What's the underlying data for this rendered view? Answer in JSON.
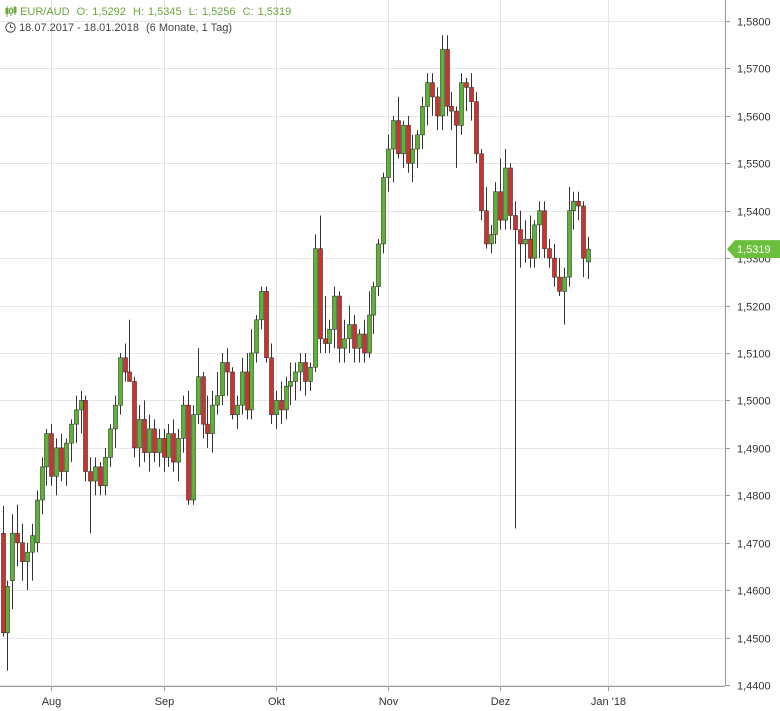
{
  "header": {
    "symbol": "EUR/AUD",
    "open_label": "O:",
    "open": "1,5292",
    "high_label": "H:",
    "high": "1,5345",
    "low_label": "L:",
    "low": "1,5256",
    "close_label": "C:",
    "close": "1,5319",
    "range": "18.07.2017 - 18.01.2018",
    "period": "(6 Monate, 1 Tag)",
    "icons": [
      "candles-icon",
      "clock-icon"
    ]
  },
  "colors": {
    "up": "#5cb531",
    "down": "#d0312d",
    "grid": "#e6e6e6",
    "badge": "#6cbf3d",
    "text": "#333333"
  },
  "chart_data": {
    "type": "candlestick",
    "ylim": [
      1.44,
      1.58
    ],
    "yticks": [
      1.58,
      1.57,
      1.56,
      1.55,
      1.54,
      1.53,
      1.52,
      1.51,
      1.5,
      1.49,
      1.48,
      1.47,
      1.46,
      1.45,
      1.44
    ],
    "ytick_labels": [
      "1,5800",
      "1,5700",
      "1,5600",
      "1,5500",
      "1,5400",
      "1,5300",
      "1,5200",
      "1,5100",
      "1,5000",
      "1,4900",
      "1,4800",
      "1,4700",
      "1,4600",
      "1,4500",
      "1,4400"
    ],
    "xticks": [
      {
        "label": "Aug",
        "index": 10
      },
      {
        "label": "Sep",
        "index": 33
      },
      {
        "label": "Okt",
        "index": 56
      },
      {
        "label": "Nov",
        "index": 79
      },
      {
        "label": "Dez",
        "index": 102
      },
      {
        "label": "Jan '18",
        "index": 124
      }
    ],
    "last_price": 1.5319,
    "last_price_label": "1,5319",
    "candles": [
      [
        1.472,
        1.4778,
        1.4502,
        1.451
      ],
      [
        1.451,
        1.462,
        1.443,
        1.4608
      ],
      [
        1.462,
        1.476,
        1.456,
        1.472
      ],
      [
        1.472,
        1.478,
        1.465,
        1.47
      ],
      [
        1.47,
        1.474,
        1.462,
        1.466
      ],
      [
        1.466,
        1.47,
        1.46,
        1.468
      ],
      [
        1.468,
        1.474,
        1.462,
        1.4715
      ],
      [
        1.47,
        1.481,
        1.468,
        1.479
      ],
      [
        1.479,
        1.488,
        1.476,
        1.486
      ],
      [
        1.486,
        1.494,
        1.482,
        1.493
      ],
      [
        1.493,
        1.495,
        1.482,
        1.484
      ],
      [
        1.484,
        1.492,
        1.48,
        1.49
      ],
      [
        1.49,
        1.493,
        1.483,
        1.485
      ],
      [
        1.485,
        1.492,
        1.482,
        1.491
      ],
      [
        1.491,
        1.496,
        1.487,
        1.495
      ],
      [
        1.495,
        1.501,
        1.491,
        1.498
      ],
      [
        1.498,
        1.502,
        1.493,
        1.5
      ],
      [
        1.5,
        1.501,
        1.483,
        1.485
      ],
      [
        1.485,
        1.488,
        1.472,
        1.483
      ],
      [
        1.483,
        1.488,
        1.48,
        1.486
      ],
      [
        1.486,
        1.487,
        1.48,
        1.482
      ],
      [
        1.482,
        1.49,
        1.48,
        1.488
      ],
      [
        1.488,
        1.495,
        1.486,
        1.494
      ],
      [
        1.494,
        1.501,
        1.49,
        1.499
      ],
      [
        1.499,
        1.51,
        1.497,
        1.509
      ],
      [
        1.509,
        1.512,
        1.504,
        1.506
      ],
      [
        1.506,
        1.517,
        1.504,
        1.504
      ],
      [
        1.504,
        1.505,
        1.488,
        1.49
      ],
      [
        1.49,
        1.499,
        1.486,
        1.496
      ],
      [
        1.496,
        1.5,
        1.487,
        1.489
      ],
      [
        1.489,
        1.497,
        1.485,
        1.494
      ],
      [
        1.494,
        1.496,
        1.487,
        1.489
      ],
      [
        1.489,
        1.494,
        1.486,
        1.492
      ],
      [
        1.492,
        1.494,
        1.485,
        1.488
      ],
      [
        1.488,
        1.495,
        1.486,
        1.493
      ],
      [
        1.493,
        1.496,
        1.485,
        1.487
      ],
      [
        1.487,
        1.494,
        1.483,
        1.492
      ],
      [
        1.492,
        1.501,
        1.489,
        1.499
      ],
      [
        1.499,
        1.502,
        1.478,
        1.479
      ],
      [
        1.479,
        1.499,
        1.478,
        1.497
      ],
      [
        1.497,
        1.511,
        1.495,
        1.505
      ],
      [
        1.505,
        1.506,
        1.492,
        1.495
      ],
      [
        1.495,
        1.501,
        1.49,
        1.493
      ],
      [
        1.493,
        1.502,
        1.489,
        1.499
      ],
      [
        1.499,
        1.506,
        1.497,
        1.501
      ],
      [
        1.501,
        1.51,
        1.499,
        1.508
      ],
      [
        1.508,
        1.511,
        1.501,
        1.506
      ],
      [
        1.506,
        1.507,
        1.496,
        1.497
      ],
      [
        1.497,
        1.501,
        1.494,
        1.499
      ],
      [
        1.499,
        1.509,
        1.497,
        1.506
      ],
      [
        1.506,
        1.51,
        1.496,
        1.498
      ],
      [
        1.498,
        1.515,
        1.496,
        1.51
      ],
      [
        1.51,
        1.518,
        1.508,
        1.517
      ],
      [
        1.517,
        1.524,
        1.515,
        1.523
      ],
      [
        1.523,
        1.524,
        1.508,
        1.509
      ],
      [
        1.509,
        1.512,
        1.495,
        1.497
      ],
      [
        1.497,
        1.502,
        1.494,
        1.5
      ],
      [
        1.5,
        1.504,
        1.495,
        1.498
      ],
      [
        1.498,
        1.505,
        1.496,
        1.503
      ],
      [
        1.503,
        1.508,
        1.499,
        1.504
      ],
      [
        1.504,
        1.508,
        1.5,
        1.506
      ],
      [
        1.506,
        1.51,
        1.502,
        1.508
      ],
      [
        1.508,
        1.51,
        1.501,
        1.504
      ],
      [
        1.504,
        1.508,
        1.502,
        1.507
      ],
      [
        1.507,
        1.535,
        1.506,
        1.532
      ],
      [
        1.532,
        1.539,
        1.51,
        1.513
      ],
      [
        1.513,
        1.522,
        1.51,
        1.512
      ],
      [
        1.512,
        1.517,
        1.51,
        1.515
      ],
      [
        1.515,
        1.524,
        1.511,
        1.522
      ],
      [
        1.522,
        1.523,
        1.508,
        1.511
      ],
      [
        1.511,
        1.517,
        1.508,
        1.513
      ],
      [
        1.513,
        1.52,
        1.51,
        1.516
      ],
      [
        1.516,
        1.518,
        1.508,
        1.511
      ],
      [
        1.511,
        1.515,
        1.508,
        1.514
      ],
      [
        1.514,
        1.517,
        1.508,
        1.51
      ],
      [
        1.51,
        1.523,
        1.509,
        1.518
      ],
      [
        1.518,
        1.525,
        1.514,
        1.524
      ],
      [
        1.524,
        1.534,
        1.522,
        1.533
      ],
      [
        1.533,
        1.548,
        1.531,
        1.547
      ],
      [
        1.547,
        1.556,
        1.544,
        1.553
      ],
      [
        1.553,
        1.56,
        1.546,
        1.559
      ],
      [
        1.559,
        1.564,
        1.551,
        1.552
      ],
      [
        1.552,
        1.559,
        1.549,
        1.558
      ],
      [
        1.558,
        1.56,
        1.548,
        1.55
      ],
      [
        1.55,
        1.556,
        1.546,
        1.553
      ],
      [
        1.553,
        1.557,
        1.549,
        1.556
      ],
      [
        1.556,
        1.564,
        1.553,
        1.562
      ],
      [
        1.562,
        1.569,
        1.558,
        1.567
      ],
      [
        1.567,
        1.569,
        1.56,
        1.564
      ],
      [
        1.564,
        1.566,
        1.557,
        1.56
      ],
      [
        1.56,
        1.577,
        1.557,
        1.574
      ],
      [
        1.574,
        1.577,
        1.56,
        1.562
      ],
      [
        1.562,
        1.565,
        1.557,
        1.561
      ],
      [
        1.561,
        1.562,
        1.549,
        1.558
      ],
      [
        1.558,
        1.569,
        1.556,
        1.567
      ],
      [
        1.567,
        1.568,
        1.561,
        1.566
      ],
      [
        1.566,
        1.569,
        1.559,
        1.563
      ],
      [
        1.563,
        1.565,
        1.55,
        1.552
      ],
      [
        1.552,
        1.553,
        1.538,
        1.54
      ],
      [
        1.54,
        1.545,
        1.532,
        1.533
      ],
      [
        1.533,
        1.537,
        1.531,
        1.535
      ],
      [
        1.535,
        1.546,
        1.533,
        1.544
      ],
      [
        1.544,
        1.551,
        1.536,
        1.538
      ],
      [
        1.538,
        1.553,
        1.536,
        1.549
      ],
      [
        1.549,
        1.55,
        1.536,
        1.539
      ],
      [
        1.539,
        1.542,
        1.473,
        1.536
      ],
      [
        1.536,
        1.54,
        1.528,
        1.533
      ],
      [
        1.533,
        1.538,
        1.529,
        1.534
      ],
      [
        1.534,
        1.539,
        1.528,
        1.53
      ],
      [
        1.53,
        1.538,
        1.528,
        1.537
      ],
      [
        1.537,
        1.542,
        1.53,
        1.54
      ],
      [
        1.54,
        1.542,
        1.53,
        1.532
      ],
      [
        1.532,
        1.534,
        1.528,
        1.53
      ],
      [
        1.53,
        1.533,
        1.524,
        1.526
      ],
      [
        1.526,
        1.53,
        1.522,
        1.523
      ],
      [
        1.523,
        1.528,
        1.516,
        1.526
      ],
      [
        1.526,
        1.545,
        1.524,
        1.54
      ],
      [
        1.54,
        1.544,
        1.536,
        1.542
      ],
      [
        1.542,
        1.544,
        1.538,
        1.541
      ],
      [
        1.541,
        1.542,
        1.526,
        1.53
      ],
      [
        1.5292,
        1.5345,
        1.5256,
        1.5319
      ]
    ]
  }
}
